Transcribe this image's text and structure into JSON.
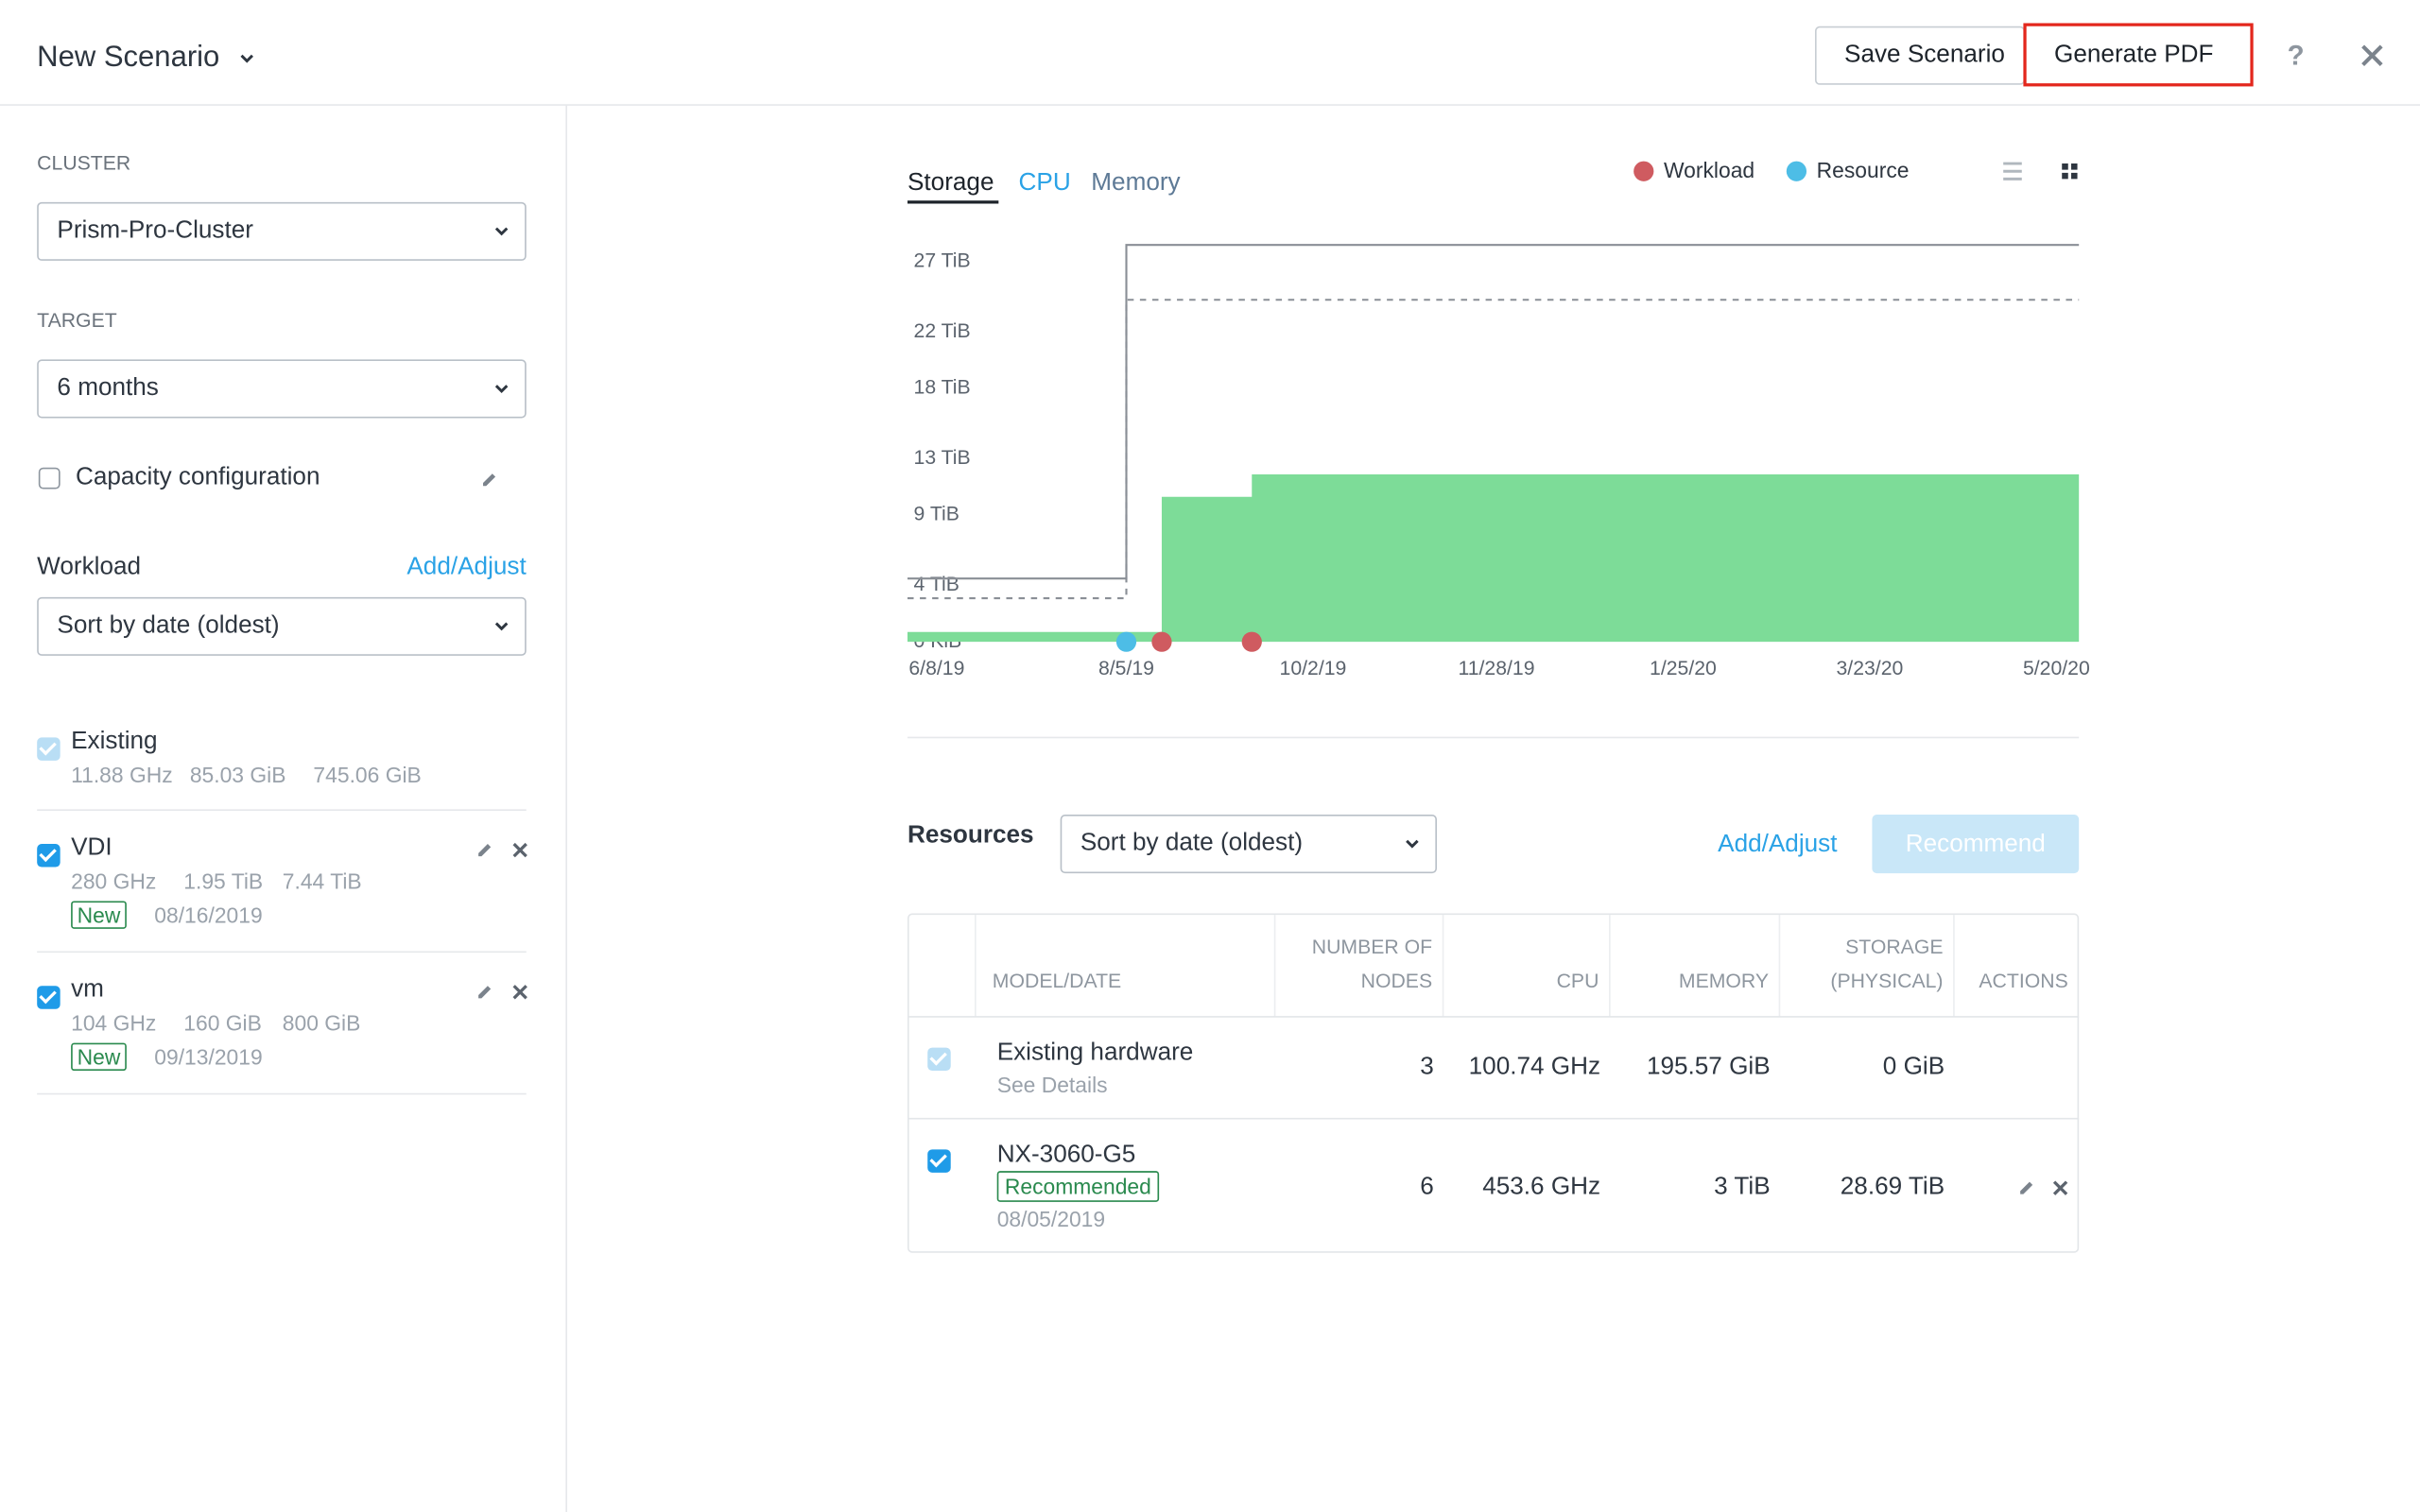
{
  "header": {
    "title": "New Scenario",
    "save": "Save Scenario",
    "pdf": "Generate PDF",
    "help": "?"
  },
  "sidebar": {
    "cluster_label": "CLUSTER",
    "cluster": "Prism-Pro-Cluster",
    "target_label": "TARGET",
    "target": "6 months",
    "capacity_config": "Capacity configuration",
    "workload_label": "Workload",
    "add_adjust": "Add/Adjust",
    "sort": "Sort by date (oldest)",
    "workloads": [
      {
        "name": "Existing",
        "disabled": true,
        "specs": [
          "11.88 GHz",
          "85.03 GiB",
          "745.06 GiB"
        ]
      },
      {
        "name": "VDI",
        "specs": [
          "280 GHz",
          "1.95 TiB",
          "7.44 TiB"
        ],
        "badge": "New",
        "date": "08/16/2019"
      },
      {
        "name": "vm",
        "specs": [
          "104 GHz",
          "160 GiB",
          "800 GiB"
        ],
        "badge": "New",
        "date": "09/13/2019"
      }
    ]
  },
  "chart_data": {
    "type": "step-area",
    "tabs": [
      "Storage",
      "CPU",
      "Memory"
    ],
    "xlim": [
      "2019-05-29",
      "2020-05-27"
    ],
    "xticks": [
      {
        "value": "2019-06-08",
        "label": "6/8/19"
      },
      {
        "value": "2019-08-05",
        "label": "8/5/19"
      },
      {
        "value": "2019-10-02",
        "label": "10/2/19"
      },
      {
        "value": "2019-11-28",
        "label": "11/28/19"
      },
      {
        "value": "2020-01-25",
        "label": "1/25/20"
      },
      {
        "value": "2020-03-23",
        "label": "3/23/20"
      },
      {
        "value": "2020-05-20",
        "label": "5/20/20"
      }
    ],
    "ylim": [
      0,
      28.5
    ],
    "yticks": [
      {
        "value": 0,
        "label": "0 KiB"
      },
      {
        "value": 4,
        "label": "4 TiB"
      },
      {
        "value": 9,
        "label": "9 TiB"
      },
      {
        "value": 13,
        "label": "13 TiB"
      },
      {
        "value": 18,
        "label": "18 TiB"
      },
      {
        "value": 22,
        "label": "22 TiB"
      },
      {
        "value": 27,
        "label": "27 TiB"
      }
    ],
    "areas": [
      {
        "color": "#7ddc98",
        "x": [
          "2019-05-29",
          "2019-08-16",
          "2019-08-16",
          "2019-09-13",
          "2019-09-13",
          "2020-05-27"
        ],
        "values": [
          0.7,
          0.7,
          10.3,
          10.3,
          11.9,
          11.9
        ]
      }
    ],
    "lines": [
      {
        "color": "#8a8f96",
        "dashed": false,
        "x": [
          "2019-05-29",
          "2019-08-05",
          "2019-08-05",
          "2020-05-27"
        ],
        "values": [
          4.5,
          4.5,
          28.2,
          28.2
        ]
      },
      {
        "color": "#8a8f96",
        "dashed": true,
        "x": [
          "2019-05-29",
          "2019-08-05",
          "2019-08-05",
          "2020-05-27"
        ],
        "values": [
          3.1,
          3.1,
          24.3,
          24.3
        ]
      }
    ],
    "markers": [
      {
        "name": "Workload",
        "color": "#cf5b60",
        "x": [
          "2019-08-16",
          "2019-09-13"
        ]
      },
      {
        "name": "Resource",
        "color": "#4dbde6",
        "x": [
          "2019-08-05"
        ]
      }
    ]
  },
  "resources": {
    "title": "Resources",
    "sort": "Sort by date (oldest)",
    "add_adjust": "Add/Adjust",
    "recommend": "Recommend",
    "table": {
      "headers": [
        "MODEL/DATE",
        "NUMBER OF NODES",
        "CPU",
        "MEMORY",
        "STORAGE (PHYSICAL)",
        "ACTIONS"
      ],
      "rows": [
        {
          "disabled": true,
          "model": "Existing hardware",
          "detail": "See Details",
          "nodes": 3,
          "cpu": "100.74 GHz",
          "memory": "195.57 GiB",
          "storage": "0 GiB"
        },
        {
          "model": "NX-3060-G5",
          "badge": "Recommended",
          "date": "08/05/2019",
          "nodes": 6,
          "cpu": "453.6 GHz",
          "memory": "3 TiB",
          "storage": "28.69 TiB"
        }
      ]
    }
  }
}
